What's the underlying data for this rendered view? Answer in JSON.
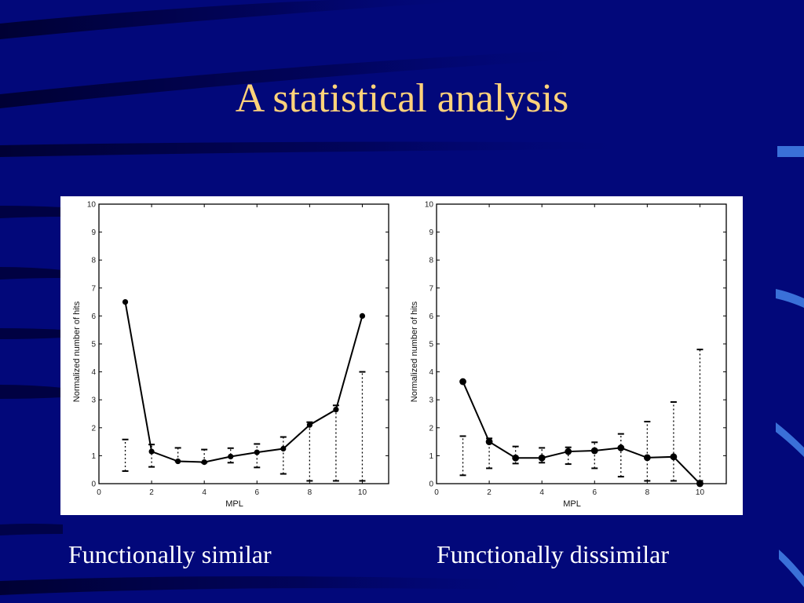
{
  "slide": {
    "title": "A statistical analysis",
    "title_color": "#ffd27a",
    "background_color": "#02087a",
    "captions": [
      "Functionally similar",
      "Functionally dissimilar"
    ]
  },
  "chart_data": [
    {
      "type": "line",
      "title": "",
      "xlabel": "MPL",
      "ylabel": "Normalized number of hits",
      "xlim": [
        0,
        11
      ],
      "ylim": [
        0,
        10
      ],
      "x_ticks": [
        "0",
        "2",
        "4",
        "6",
        "8",
        "10"
      ],
      "y_ticks": [
        "0",
        "1",
        "2",
        "3",
        "4",
        "5",
        "6",
        "7",
        "8",
        "9",
        "10"
      ],
      "grid": false,
      "x": [
        1,
        2,
        3,
        4,
        5,
        6,
        7,
        8,
        9,
        10
      ],
      "y": [
        6.5,
        1.15,
        0.8,
        0.77,
        0.97,
        1.12,
        1.25,
        2.1,
        2.65,
        6.0
      ],
      "error_bars": [
        [
          0.45,
          1.58
        ],
        [
          0.6,
          1.4
        ],
        [
          0.8,
          1.28
        ],
        [
          0.75,
          1.22
        ],
        [
          0.75,
          1.27
        ],
        [
          0.58,
          1.42
        ],
        [
          0.35,
          1.67
        ],
        [
          0.1,
          2.2
        ],
        [
          0.1,
          2.8
        ],
        [
          0.1,
          4.0
        ]
      ]
    },
    {
      "type": "line",
      "title": "",
      "xlabel": "MPL",
      "ylabel": "Normalized number of hits",
      "xlim": [
        0,
        11
      ],
      "ylim": [
        0,
        10
      ],
      "x_ticks": [
        "0",
        "2",
        "4",
        "6",
        "8",
        "10"
      ],
      "y_ticks": [
        "0",
        "1",
        "2",
        "3",
        "4",
        "5",
        "6",
        "7",
        "8",
        "9",
        "10"
      ],
      "grid": false,
      "x": [
        1,
        2,
        3,
        4,
        5,
        6,
        7,
        8,
        9,
        10
      ],
      "y": [
        3.65,
        1.5,
        0.92,
        0.92,
        1.15,
        1.18,
        1.28,
        0.93,
        0.96,
        0.0
      ],
      "error_bars": [
        [
          0.3,
          1.7
        ],
        [
          0.55,
          1.62
        ],
        [
          0.72,
          1.33
        ],
        [
          0.75,
          1.28
        ],
        [
          0.7,
          1.3
        ],
        [
          0.55,
          1.48
        ],
        [
          0.25,
          1.78
        ],
        [
          0.1,
          2.22
        ],
        [
          0.1,
          2.92
        ],
        [
          0.1,
          4.8
        ]
      ]
    }
  ]
}
